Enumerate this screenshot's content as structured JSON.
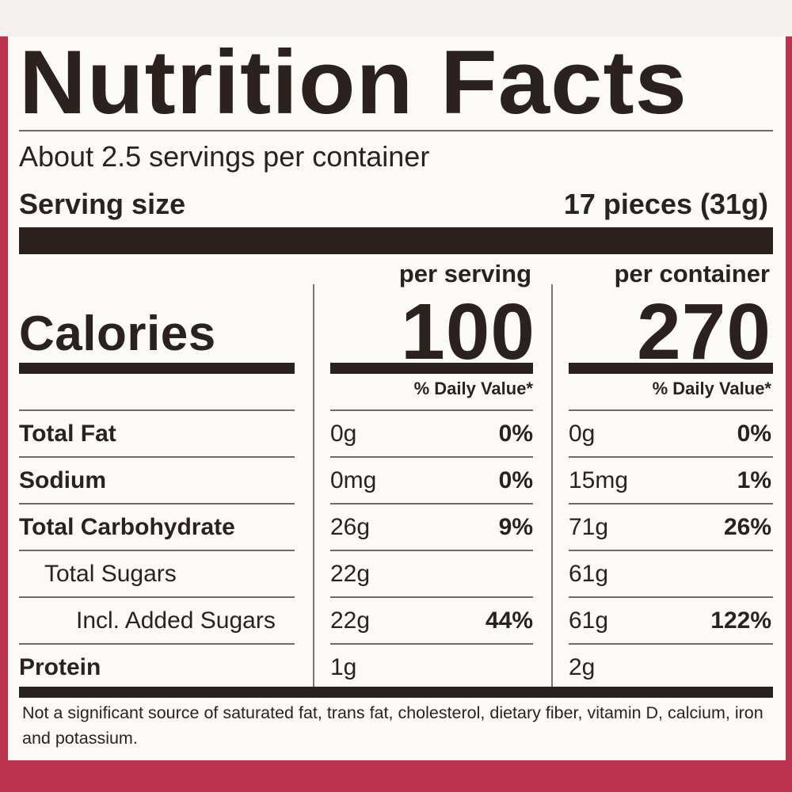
{
  "label": {
    "title": "Nutrition Facts",
    "servings_per_container": "About 2.5 servings per container",
    "serving_size_label": "Serving size",
    "serving_size_value": "17 pieces (31g)",
    "calories_label": "Calories",
    "per_serving_label": "per serving",
    "per_container_label": "per container",
    "calories_per_serving": "100",
    "calories_per_container": "270",
    "daily_value_label": "% Daily Value*",
    "nutrients": [
      {
        "name": "Total Fat",
        "serving_amount": "0g",
        "serving_dv": "0%",
        "container_amount": "0g",
        "container_dv": "0%"
      },
      {
        "name": "Sodium",
        "serving_amount": "0mg",
        "serving_dv": "0%",
        "container_amount": "15mg",
        "container_dv": "1%"
      },
      {
        "name": "Total Carbohydrate",
        "serving_amount": "26g",
        "serving_dv": "9%",
        "container_amount": "71g",
        "container_dv": "26%"
      },
      {
        "name": "Total Sugars",
        "serving_amount": "22g",
        "serving_dv": "",
        "container_amount": "61g",
        "container_dv": ""
      },
      {
        "name": "Incl. Added Sugars",
        "serving_amount": "22g",
        "serving_dv": "44%",
        "container_amount": "61g",
        "container_dv": "122%"
      },
      {
        "name": "Protein",
        "serving_amount": "1g",
        "serving_dv": "",
        "container_amount": "2g",
        "container_dv": ""
      }
    ],
    "footnote": "Not a significant source of saturated fat, trans fat, cholesterol, dietary fiber, vitamin D, calcium, iron and potassium."
  },
  "colors": {
    "border": "#b9334d",
    "ink": "#2b2220",
    "paper": "#fbfaf9"
  }
}
